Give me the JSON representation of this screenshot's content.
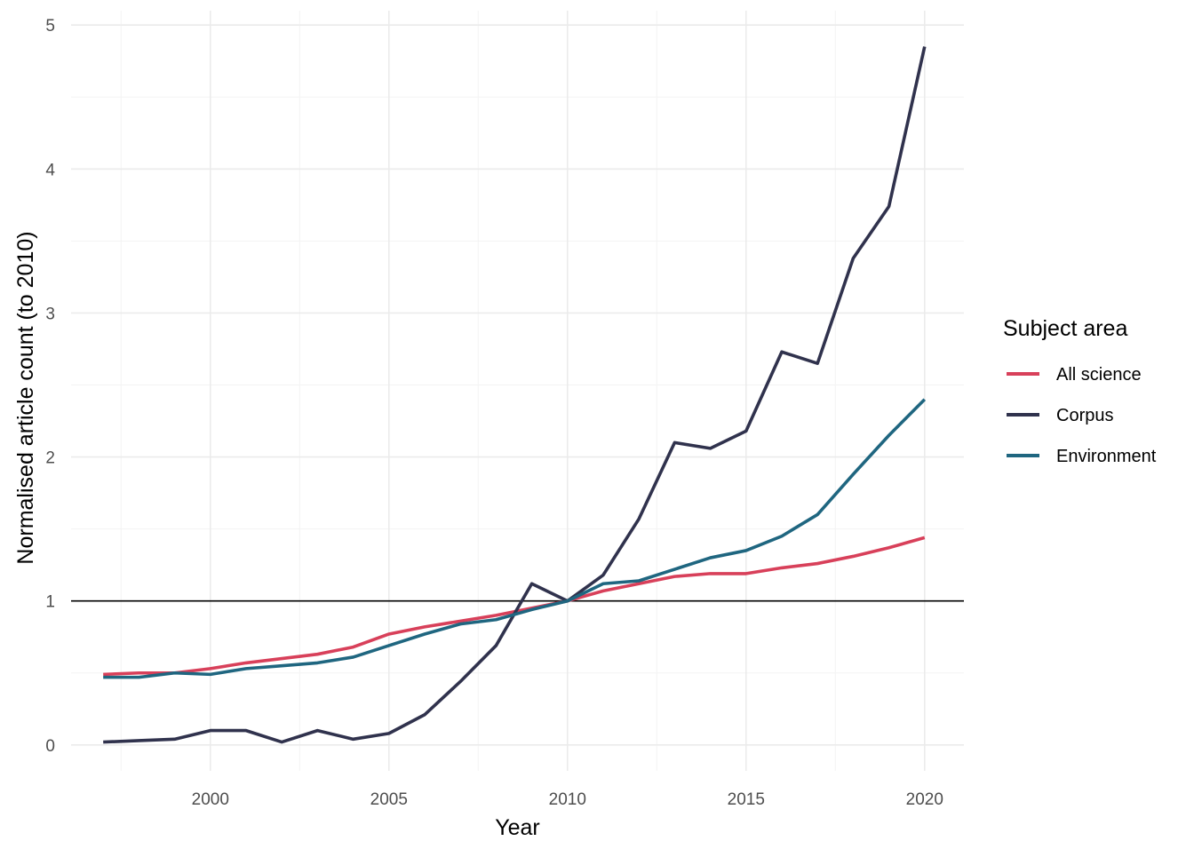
{
  "chart_data": {
    "type": "line",
    "title": "",
    "xlabel": "Year",
    "ylabel": "Normalised article count (to 2010)",
    "xlim": [
      1996.1,
      2021.1
    ],
    "ylim": [
      -0.18,
      5.1
    ],
    "x_ticks": [
      2000,
      2005,
      2010,
      2015,
      2020
    ],
    "y_ticks": [
      0,
      1,
      2,
      3,
      4,
      5
    ],
    "grid": true,
    "reference_line": {
      "y": 1,
      "color": "#000000"
    },
    "legend": {
      "title": "Subject area",
      "placement": "right"
    },
    "x": [
      1997,
      1998,
      1999,
      2000,
      2001,
      2002,
      2003,
      2004,
      2005,
      2006,
      2007,
      2008,
      2009,
      2010,
      2011,
      2012,
      2013,
      2014,
      2015,
      2016,
      2017,
      2018,
      2019,
      2020
    ],
    "series": [
      {
        "name": "All science",
        "color": "#d8405a",
        "values": [
          0.49,
          0.5,
          0.5,
          0.53,
          0.57,
          0.6,
          0.63,
          0.68,
          0.77,
          0.82,
          0.86,
          0.9,
          0.95,
          1.0,
          1.07,
          1.12,
          1.17,
          1.19,
          1.19,
          1.23,
          1.26,
          1.31,
          1.37,
          1.44
        ]
      },
      {
        "name": "Corpus",
        "color": "#30324d",
        "values": [
          0.02,
          0.03,
          0.04,
          0.1,
          0.1,
          0.02,
          0.1,
          0.04,
          0.08,
          0.21,
          0.44,
          0.69,
          1.12,
          1.0,
          1.18,
          1.57,
          2.1,
          2.06,
          2.18,
          2.73,
          2.65,
          3.38,
          3.74,
          4.85
        ]
      },
      {
        "name": "Environment",
        "color": "#1f6680",
        "values": [
          0.47,
          0.47,
          0.5,
          0.49,
          0.53,
          0.55,
          0.57,
          0.61,
          0.69,
          0.77,
          0.84,
          0.87,
          0.94,
          1.0,
          1.12,
          1.14,
          1.22,
          1.3,
          1.35,
          1.45,
          1.6,
          1.88,
          2.15,
          2.4
        ]
      }
    ]
  }
}
